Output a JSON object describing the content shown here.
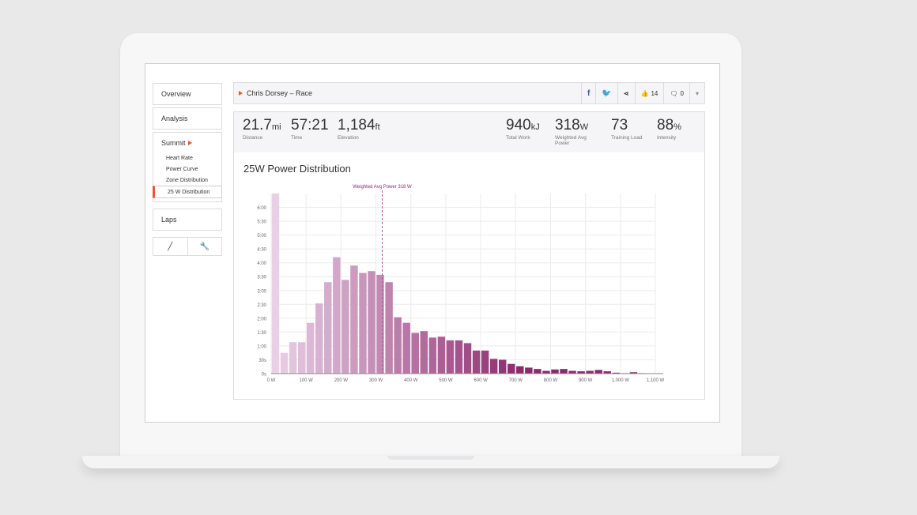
{
  "sidebar": {
    "items": [
      {
        "label": "Overview"
      },
      {
        "label": "Analysis"
      },
      {
        "label": "Summit",
        "subitems": [
          "Heart Rate",
          "Power Curve",
          "Zone Distribution",
          "25 W Distribution"
        ],
        "active_subitem": "25 W Distribution"
      },
      {
        "label": "Laps"
      }
    ],
    "tools": [
      {
        "icon": "pencil-icon",
        "glyph": "╱"
      },
      {
        "icon": "wrench-icon",
        "glyph": "🔧"
      }
    ]
  },
  "header": {
    "title": "Chris Dorsey – Race",
    "facebook_glyph": "f",
    "twitter_glyph": "🐦",
    "share_glyph": "⋖",
    "likes": "14",
    "comments": "0",
    "dropdown_glyph": "▾"
  },
  "stats": [
    {
      "value": "21.7",
      "unit": "mi",
      "label": "Distance"
    },
    {
      "value": "57:21",
      "unit": "",
      "label": "Time"
    },
    {
      "value": "1,184",
      "unit": "ft",
      "label": "Elevation"
    },
    {
      "value": "940",
      "unit": "kJ",
      "label": "Total Work"
    },
    {
      "value": "318",
      "unit": "W",
      "label": "Weighted Avg Power"
    },
    {
      "value": "73",
      "unit": "",
      "label": "Training Load"
    },
    {
      "value": "88",
      "unit": "%",
      "label": "Intensity"
    }
  ],
  "chart_data": {
    "type": "bar",
    "title": "25W Power Distribution",
    "x_unit": "W",
    "bin_width": 25,
    "x_ticks": [
      "0 W",
      "100 W",
      "200 W",
      "300 W",
      "400 W",
      "500 W",
      "600 W",
      "700 W",
      "800 W",
      "900 W",
      "1,000 W",
      "1,100 W"
    ],
    "y_ticks": [
      "0s",
      "30s",
      "1:00",
      "1:30",
      "2:00",
      "2:30",
      "3:00",
      "3:30",
      "4:00",
      "4:30",
      "5:00",
      "5:30",
      "6:00"
    ],
    "xlim": [
      0,
      1100
    ],
    "ylim": [
      0,
      390
    ],
    "bin_starts": [
      0,
      25,
      50,
      75,
      100,
      125,
      150,
      175,
      200,
      225,
      250,
      275,
      300,
      325,
      350,
      375,
      400,
      425,
      450,
      475,
      500,
      525,
      550,
      575,
      600,
      625,
      650,
      675,
      700,
      725,
      750,
      775,
      800,
      825,
      850,
      875,
      900,
      925,
      950,
      975,
      1000,
      1025,
      1050
    ],
    "values_seconds": [
      400,
      45,
      68,
      68,
      110,
      152,
      198,
      252,
      203,
      234,
      218,
      222,
      214,
      198,
      122,
      110,
      88,
      92,
      78,
      80,
      72,
      72,
      66,
      50,
      50,
      32,
      30,
      21,
      16,
      13,
      10,
      6,
      9,
      10,
      6,
      5,
      6,
      8,
      5,
      2,
      1,
      3,
      1
    ],
    "annotation": {
      "label": "Weighted Avg Power 318 W",
      "x": 318
    },
    "colors": {
      "start": "#ead0e6",
      "end": "#8c2a6e",
      "annotation": "#b05a94"
    },
    "grid": true
  }
}
